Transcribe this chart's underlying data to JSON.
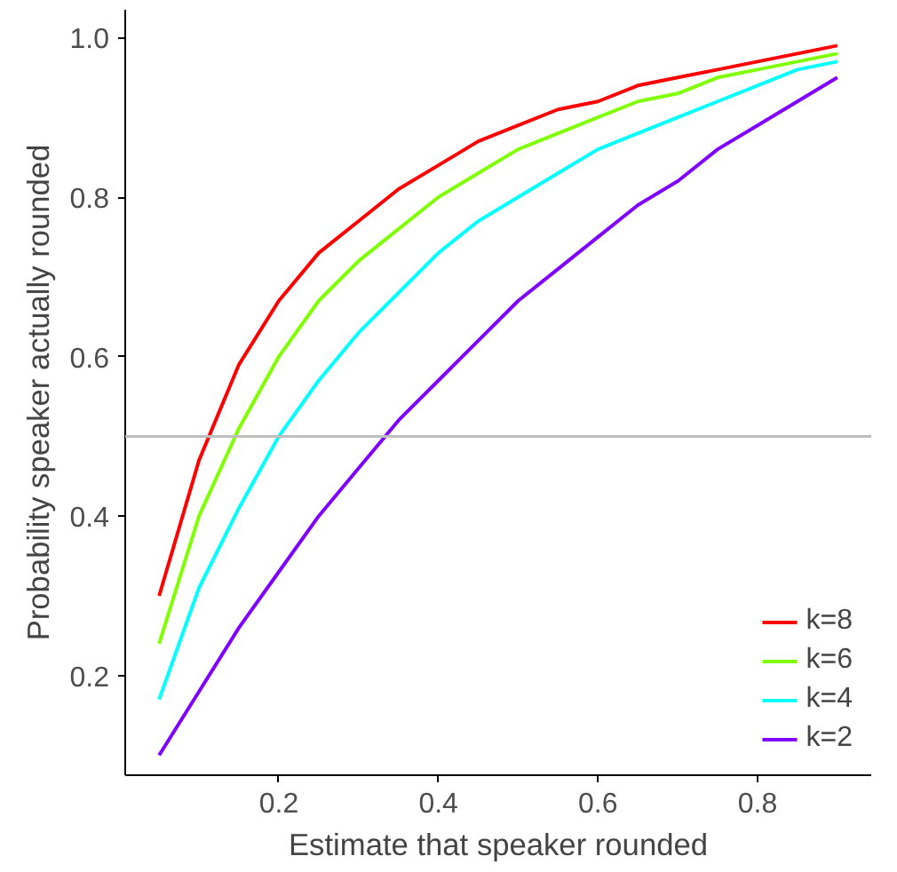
{
  "chart_data": {
    "type": "line",
    "xlabel": "Estimate that speaker rounded",
    "ylabel": "Probability speaker actually rounded",
    "x": [
      0.05,
      0.1,
      0.15,
      0.2,
      0.25,
      0.3,
      0.35,
      0.4,
      0.45,
      0.5,
      0.55,
      0.6,
      0.65,
      0.7,
      0.75,
      0.8,
      0.85,
      0.9
    ],
    "series": [
      {
        "name": "k=8",
        "color": "#ff0000",
        "values": [
          0.3,
          0.47,
          0.59,
          0.67,
          0.73,
          0.77,
          0.81,
          0.84,
          0.87,
          0.89,
          0.91,
          0.92,
          0.94,
          0.95,
          0.96,
          0.97,
          0.98,
          0.99
        ]
      },
      {
        "name": "k=6",
        "color": "#80ff00",
        "values": [
          0.24,
          0.4,
          0.51,
          0.6,
          0.67,
          0.72,
          0.76,
          0.8,
          0.83,
          0.86,
          0.88,
          0.9,
          0.92,
          0.93,
          0.95,
          0.96,
          0.97,
          0.98
        ]
      },
      {
        "name": "k=4",
        "color": "#00ffff",
        "values": [
          0.17,
          0.31,
          0.41,
          0.5,
          0.57,
          0.63,
          0.68,
          0.73,
          0.77,
          0.8,
          0.83,
          0.86,
          0.88,
          0.9,
          0.92,
          0.94,
          0.96,
          0.97
        ]
      },
      {
        "name": "k=2",
        "color": "#8000ff",
        "values": [
          0.1,
          0.18,
          0.26,
          0.33,
          0.4,
          0.46,
          0.52,
          0.57,
          0.62,
          0.67,
          0.71,
          0.75,
          0.79,
          0.82,
          0.86,
          0.89,
          0.92,
          0.95
        ]
      }
    ],
    "xlim": [
      0.0075,
      0.9425
    ],
    "ylim": [
      0.075,
      1.035
    ],
    "xticks": [
      0.2,
      0.4,
      0.6,
      0.8
    ],
    "yticks": [
      0.2,
      0.4,
      0.6,
      0.8,
      {
        "value": 1,
        "label": "1.0"
      }
    ],
    "ref_lines": [
      {
        "axis": "y",
        "value": 0.5,
        "color": "#bebebe"
      }
    ],
    "legend": "bottom right",
    "grid": false,
    "line_style": "solid"
  }
}
